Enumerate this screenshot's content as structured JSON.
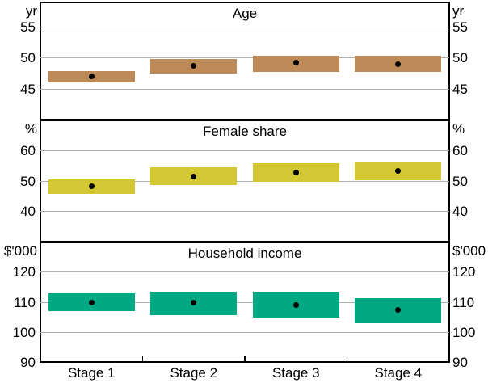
{
  "chart_data": [
    {
      "type": "bar",
      "subtype": "range-box-with-dot",
      "title": "Age",
      "unit_label_left": "yr",
      "unit_label_right": "yr",
      "categories": [
        "Stage 1",
        "Stage 2",
        "Stage 3",
        "Stage 4"
      ],
      "ylim": [
        40,
        59
      ],
      "yticks": [
        45,
        50,
        55
      ],
      "bar_color": "#BE8A57",
      "boxes_low_high": [
        [
          46.0,
          47.9
        ],
        [
          47.5,
          49.8
        ],
        [
          47.8,
          50.4
        ],
        [
          47.7,
          50.3
        ]
      ],
      "dot_values": [
        47.0,
        48.7,
        49.2,
        49.0
      ],
      "grid": true,
      "legend": "none"
    },
    {
      "type": "bar",
      "subtype": "range-box-with-dot",
      "title": "Female share",
      "unit_label_left": "%",
      "unit_label_right": "%",
      "categories": [
        "Stage 1",
        "Stage 2",
        "Stage 3",
        "Stage 4"
      ],
      "ylim": [
        30,
        70
      ],
      "yticks": [
        40,
        50,
        60
      ],
      "bar_color": "#D3C733",
      "boxes_low_high": [
        [
          45.8,
          50.5
        ],
        [
          48.7,
          54.4
        ],
        [
          49.8,
          55.8
        ],
        [
          50.2,
          56.4
        ]
      ],
      "dot_values": [
        48.3,
        51.5,
        52.9,
        53.4
      ],
      "grid": true,
      "legend": "none"
    },
    {
      "type": "bar",
      "subtype": "range-box-with-dot",
      "title": "Household income",
      "unit_label_left": "$'000",
      "unit_label_right": "$'000",
      "categories": [
        "Stage 1",
        "Stage 2",
        "Stage 3",
        "Stage 4"
      ],
      "ylim": [
        90,
        130
      ],
      "yticks": [
        90,
        100,
        110,
        120
      ],
      "bar_color": "#00A982",
      "boxes_low_high": [
        [
          107.0,
          113.0
        ],
        [
          105.8,
          113.4
        ],
        [
          105.0,
          113.4
        ],
        [
          103.0,
          111.4
        ]
      ],
      "dot_values": [
        110.0,
        109.9,
        109.0,
        107.5
      ],
      "grid": true,
      "legend": "none"
    }
  ],
  "x_axis": {
    "categories": [
      "Stage 1",
      "Stage 2",
      "Stage 3",
      "Stage 4"
    ]
  }
}
